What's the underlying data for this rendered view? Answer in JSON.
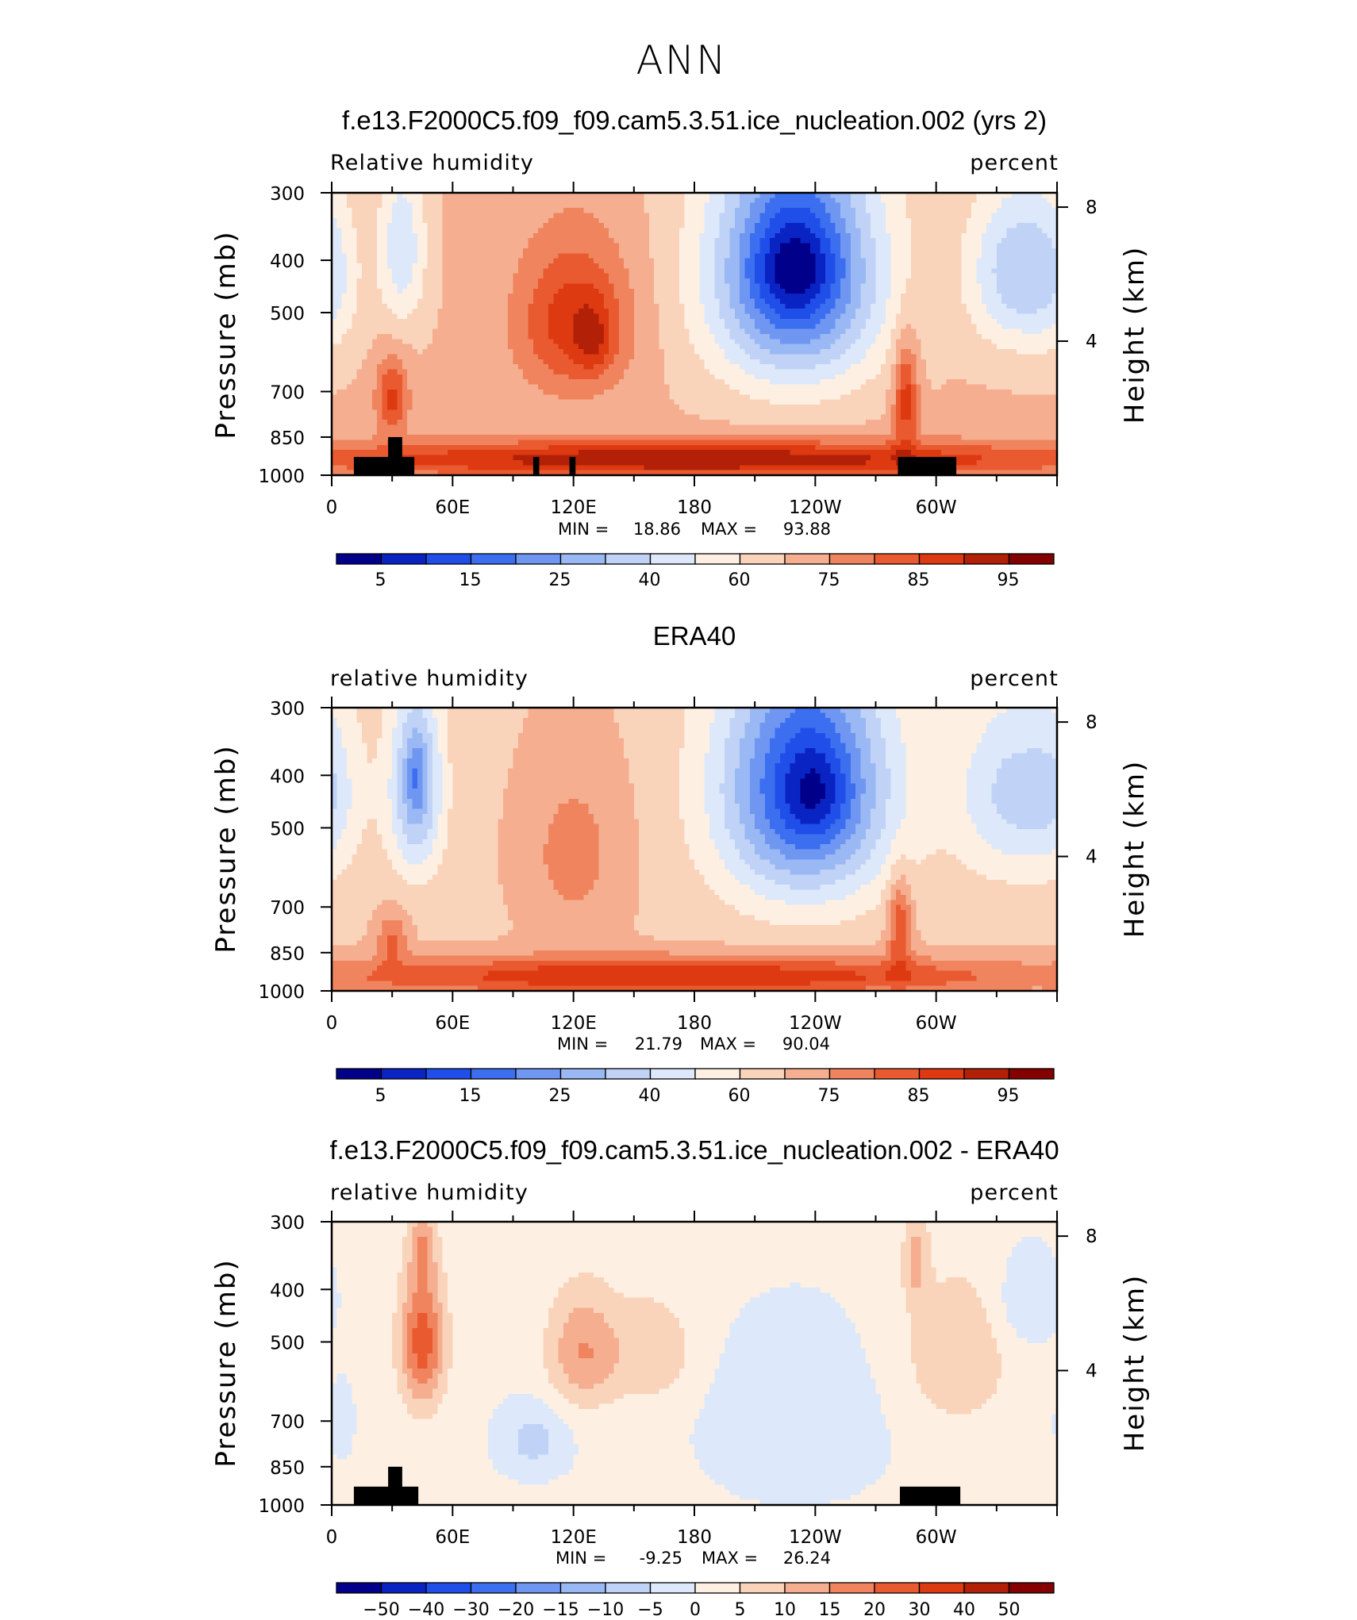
{
  "page": {
    "season": "ANN"
  },
  "colors": {
    "absolute": [
      "#00008b",
      "#0a24c4",
      "#1f4fe8",
      "#3c6ff0",
      "#6f97f2",
      "#9ab8f4",
      "#c0d3f7",
      "#dde8fa",
      "#fdf0e2",
      "#fad3bb",
      "#f5ae8f",
      "#ef845e",
      "#ea5a30",
      "#dd3a12",
      "#b22008",
      "#850000"
    ],
    "difference": [
      "#00008b",
      "#0a24c4",
      "#1f4fe8",
      "#3c6ff0",
      "#6f97f2",
      "#9ab8f4",
      "#c0d3f7",
      "#dde8fa",
      "#fdf0e2",
      "#fad3bb",
      "#f5ae8f",
      "#ef845e",
      "#ea5a30",
      "#dd3a12",
      "#b22008",
      "#850000"
    ]
  },
  "chart_data": [
    {
      "type": "heatmap",
      "title": "f.e13.F2000C5.f09_f09.cam5.3.51.ice_nucleation.002 (yrs 2)",
      "variable_label": "Relative humidity",
      "units_label": "percent",
      "ylabel": "Pressure (mb)",
      "ylabel_right": "Height (km)",
      "x_ticks": [
        "0",
        "60E",
        "120E",
        "180",
        "120W",
        "60W"
      ],
      "y_ticks": [
        "300",
        "400",
        "500",
        "700",
        "850",
        "1000"
      ],
      "y2_ticks": [
        "8",
        "4"
      ],
      "xlim": [
        0,
        360
      ],
      "ylim": [
        1000,
        300
      ],
      "min_label": "MIN =",
      "min": "18.86",
      "max_label": "MAX =",
      "max": "93.88",
      "colorbar_labels": [
        "5",
        "15",
        "25",
        "40",
        "60",
        "75",
        "85",
        "95"
      ],
      "fields": [
        {
          "lon": 0,
          "p": 430,
          "dlon": 14,
          "dp": 160,
          "v": -8
        },
        {
          "lon": 35,
          "p": 380,
          "dlon": 12,
          "dp": 140,
          "v": -18
        },
        {
          "lon": 120,
          "p": 520,
          "dlon": 28,
          "dp": 170,
          "v": 22
        },
        {
          "lon": 130,
          "p": 560,
          "dlon": 9,
          "dp": 90,
          "v": 10
        },
        {
          "lon": 230,
          "p": 420,
          "dlon": 42,
          "dp": 230,
          "v": -48
        },
        {
          "lon": 230,
          "p": 410,
          "dlon": 20,
          "dp": 90,
          "v": -15
        },
        {
          "lon": 340,
          "p": 420,
          "dlon": 24,
          "dp": 150,
          "v": -24
        },
        {
          "lon": 30,
          "p": 720,
          "dlon": 8,
          "dp": 120,
          "v": 20
        },
        {
          "lon": 285,
          "p": 720,
          "dlon": 6,
          "dp": 170,
          "v": 22
        },
        {
          "lon": 180,
          "p": 935,
          "dlon": 200,
          "dp": 75,
          "v": 30
        }
      ],
      "topography": [
        {
          "lon0": 11,
          "lon1": 41,
          "p": 925
        },
        {
          "lon0": 28,
          "lon1": 35,
          "p": 850
        },
        {
          "lon0": 100,
          "lon1": 103,
          "p": 925
        },
        {
          "lon0": 118,
          "lon1": 121,
          "p": 925
        },
        {
          "lon0": 281,
          "lon1": 310,
          "p": 925
        }
      ]
    },
    {
      "type": "heatmap",
      "title": "ERA40",
      "variable_label": "relative humidity",
      "units_label": "percent",
      "ylabel": "Pressure (mb)",
      "ylabel_right": "Height (km)",
      "x_ticks": [
        "0",
        "60E",
        "120E",
        "180",
        "120W",
        "60W"
      ],
      "y_ticks": [
        "300",
        "400",
        "500",
        "700",
        "850",
        "1000"
      ],
      "y2_ticks": [
        "8",
        "4"
      ],
      "xlim": [
        0,
        360
      ],
      "ylim": [
        1000,
        300
      ],
      "min_label": "MIN =",
      "min": "21.79",
      "max_label": "MAX =",
      "max": "90.04",
      "colorbar_labels": [
        "5",
        "15",
        "25",
        "40",
        "60",
        "75",
        "85",
        "95"
      ],
      "fields": [
        {
          "lon": 0,
          "p": 430,
          "dlon": 12,
          "dp": 160,
          "v": -6
        },
        {
          "lon": 42,
          "p": 420,
          "dlon": 13,
          "dp": 170,
          "v": -28
        },
        {
          "lon": 42,
          "p": 400,
          "dlon": 5,
          "dp": 60,
          "v": -10
        },
        {
          "lon": 120,
          "p": 560,
          "dlon": 26,
          "dp": 220,
          "v": 10
        },
        {
          "lon": 235,
          "p": 420,
          "dlon": 42,
          "dp": 230,
          "v": -46
        },
        {
          "lon": 240,
          "p": 430,
          "dlon": 16,
          "dp": 90,
          "v": -12
        },
        {
          "lon": 340,
          "p": 430,
          "dlon": 30,
          "dp": 170,
          "v": -20
        },
        {
          "lon": 30,
          "p": 800,
          "dlon": 8,
          "dp": 90,
          "v": 14
        },
        {
          "lon": 282,
          "p": 760,
          "dlon": 6,
          "dp": 150,
          "v": 20
        },
        {
          "lon": 170,
          "p": 940,
          "dlon": 190,
          "dp": 80,
          "v": 26
        }
      ],
      "topography": []
    },
    {
      "type": "heatmap",
      "title": "f.e13.F2000C5.f09_f09.cam5.3.51.ice_nucleation.002 - ERA40",
      "variable_label": "relative humidity",
      "units_label": "percent",
      "ylabel": "Pressure (mb)",
      "ylabel_right": "Height (km)",
      "x_ticks": [
        "0",
        "60E",
        "120E",
        "180",
        "120W",
        "60W"
      ],
      "y_ticks": [
        "300",
        "400",
        "500",
        "700",
        "850",
        "1000"
      ],
      "y2_ticks": [
        "8",
        "4"
      ],
      "xlim": [
        0,
        360
      ],
      "ylim": [
        1000,
        300
      ],
      "min_label": "MIN =",
      "min": "-9.25",
      "max_label": "MAX =",
      "max": "26.24",
      "colorbar_labels": [
        "−50",
        "−40",
        "−30",
        "−20",
        "−15",
        "−10",
        "−5",
        "0",
        "5",
        "10",
        "15",
        "20",
        "30",
        "40",
        "50"
      ],
      "fields": [
        {
          "lon": 45,
          "p": 500,
          "dlon": 11,
          "dp": 150,
          "v": 22
        },
        {
          "lon": 45,
          "p": 330,
          "dlon": 6,
          "dp": 50,
          "v": 10
        },
        {
          "lon": 125,
          "p": 520,
          "dlon": 18,
          "dp": 130,
          "v": 14
        },
        {
          "lon": 160,
          "p": 520,
          "dlon": 20,
          "dp": 120,
          "v": 8
        },
        {
          "lon": 310,
          "p": 530,
          "dlon": 28,
          "dp": 180,
          "v": 8
        },
        {
          "lon": 290,
          "p": 350,
          "dlon": 6,
          "dp": 70,
          "v": 10
        },
        {
          "lon": 100,
          "p": 760,
          "dlon": 16,
          "dp": 110,
          "v": -8
        },
        {
          "lon": 230,
          "p": 700,
          "dlon": 40,
          "dp": 230,
          "v": -6
        },
        {
          "lon": 345,
          "p": 420,
          "dlon": 14,
          "dp": 80,
          "v": -7
        },
        {
          "lon": 5,
          "p": 700,
          "dlon": 5,
          "dp": 100,
          "v": -6
        }
      ],
      "topography": [
        {
          "lon0": 11,
          "lon1": 43,
          "p": 925
        },
        {
          "lon0": 28,
          "lon1": 35,
          "p": 850
        },
        {
          "lon0": 282,
          "lon1": 312,
          "p": 925
        }
      ]
    }
  ]
}
